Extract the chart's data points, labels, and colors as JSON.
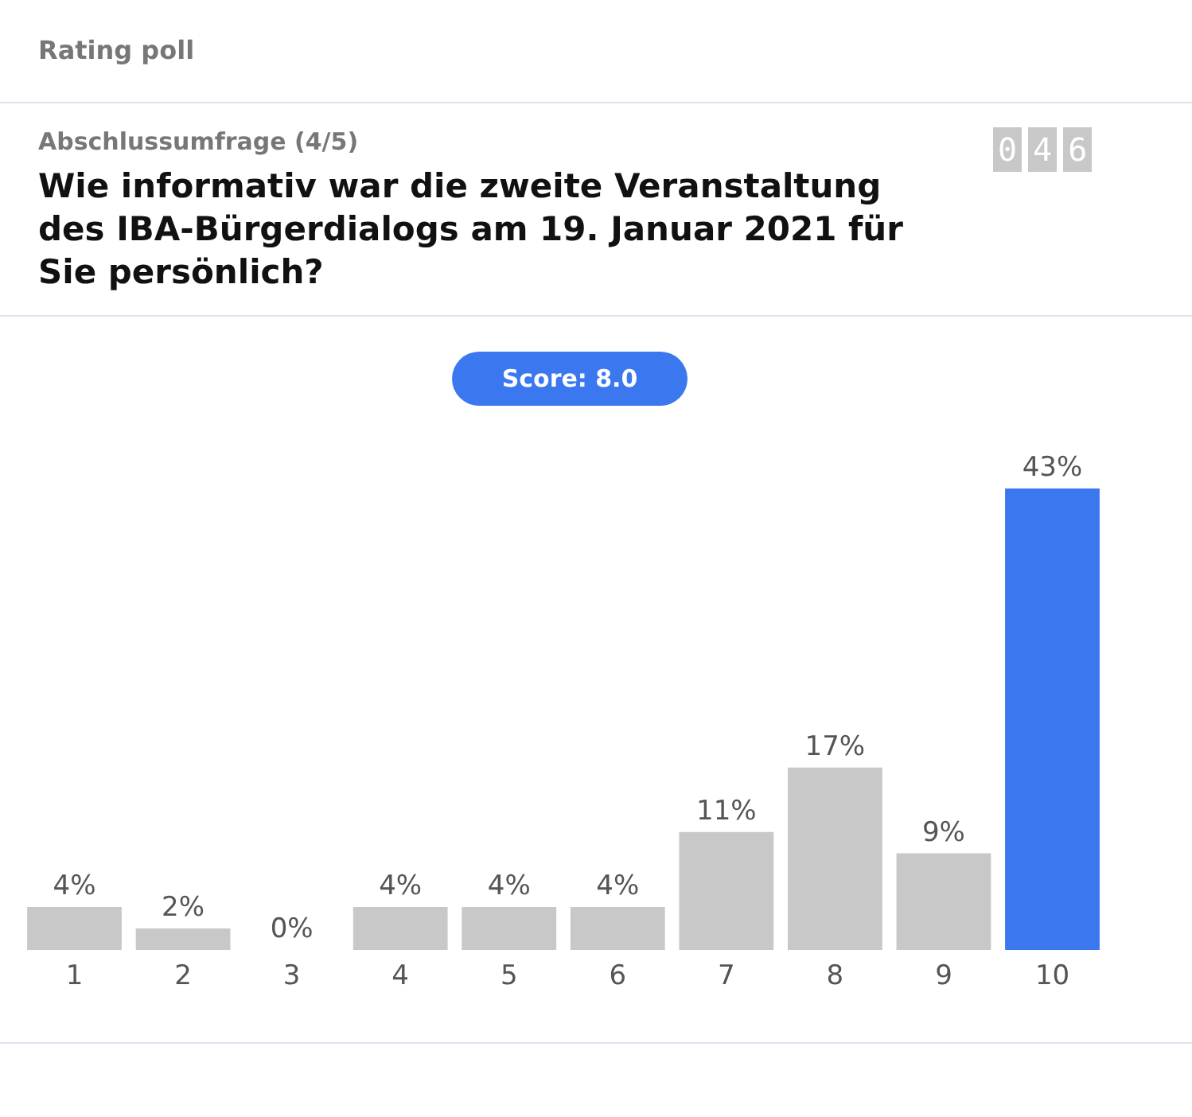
{
  "chart_data": {
    "type": "bar",
    "title": "Wie informativ war die zweite Veranstaltung des IBA-Bürgerdialogs am 19. Januar 2021 für Sie persönlich?",
    "subtitle": "Abschlussumfrage (4/5)",
    "annotations": [
      "Rating poll",
      "046",
      "Score: 8.0"
    ],
    "categories": [
      "1",
      "2",
      "3",
      "4",
      "5",
      "6",
      "7",
      "8",
      "9",
      "10"
    ],
    "values": [
      4,
      2,
      0,
      4,
      4,
      4,
      11,
      17,
      9,
      43
    ],
    "value_labels": [
      "4%",
      "2%",
      "0%",
      "4%",
      "4%",
      "4%",
      "11%",
      "17%",
      "9%",
      "43%"
    ],
    "colors": [
      "#c8c8c8",
      "#c8c8c8",
      "#c8c8c8",
      "#c8c8c8",
      "#c8c8c8",
      "#c8c8c8",
      "#c8c8c8",
      "#c8c8c8",
      "#c8c8c8",
      "#3b78ef"
    ]
  }
}
